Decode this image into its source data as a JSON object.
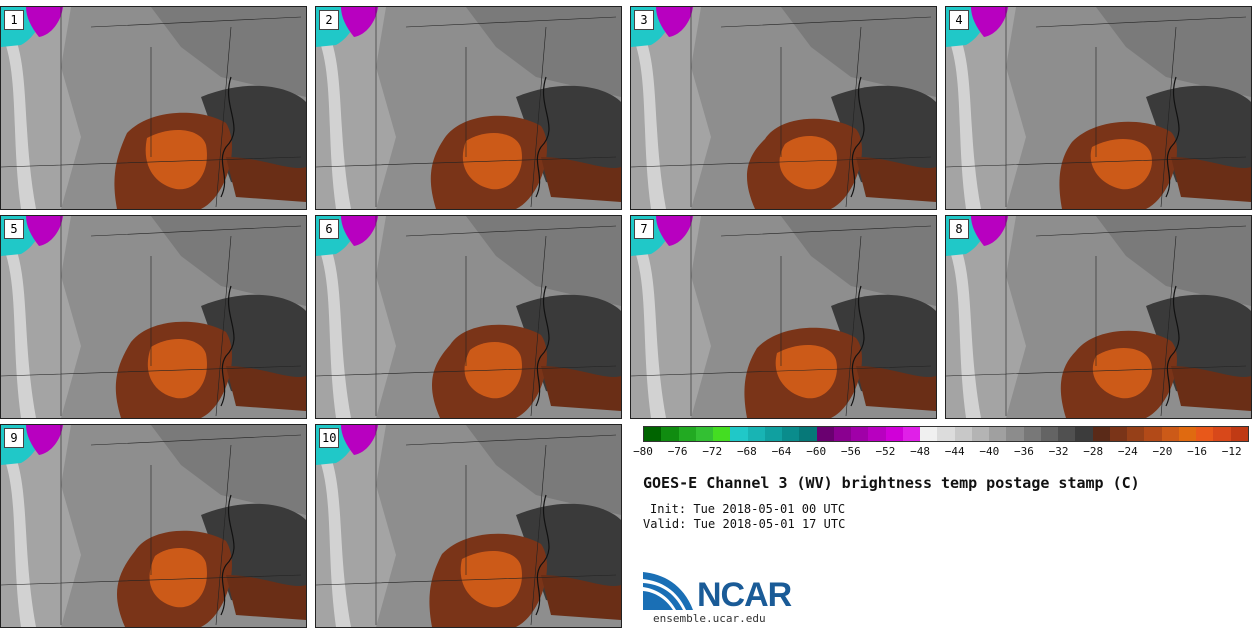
{
  "members": [
    {
      "label": "1"
    },
    {
      "label": "2"
    },
    {
      "label": "3"
    },
    {
      "label": "4"
    },
    {
      "label": "5"
    },
    {
      "label": "6"
    },
    {
      "label": "7"
    },
    {
      "label": "8"
    },
    {
      "label": "9"
    },
    {
      "label": "10"
    }
  ],
  "colorbar": {
    "min": -80,
    "max": -10,
    "colors": [
      "#006400",
      "#108c10",
      "#22aa22",
      "#33c033",
      "#44dd22",
      "#20c8c8",
      "#18b4b4",
      "#10a0a0",
      "#0a8c8c",
      "#067878",
      "#6a0070",
      "#8a0090",
      "#a000a8",
      "#b800c0",
      "#d000d8",
      "#e020e8",
      "#f0f0f0",
      "#dcdcdc",
      "#c8c8c8",
      "#b4b4b4",
      "#a0a0a0",
      "#8c8c8c",
      "#787878",
      "#646464",
      "#505050",
      "#3c3c3c",
      "#5a2a18",
      "#7a3418",
      "#964018",
      "#b24a18",
      "#cc5a18",
      "#e06a10",
      "#e8581a",
      "#d8481a",
      "#c03a14"
    ],
    "ticks": [
      "-80",
      "-76",
      "-72",
      "-68",
      "-64",
      "-60",
      "-56",
      "-52",
      "-48",
      "-44",
      "-40",
      "-36",
      "-32",
      "-28",
      "-24",
      "-20",
      "-16",
      "-12"
    ],
    "tick_values": [
      -80,
      -76,
      -72,
      -68,
      -64,
      -60,
      -56,
      -52,
      -48,
      -44,
      -40,
      -36,
      -32,
      -28,
      -24,
      -20,
      -16,
      -12
    ]
  },
  "title": "GOES-E Channel 3 (WV) brightness temp postage stamp (C)",
  "init": "Init: Tue 2018-05-01 00 UTC",
  "valid": "Valid: Tue 2018-05-01 17 UTC",
  "logo": {
    "text": "NCAR",
    "url": "ensemble.ucar.edu"
  }
}
